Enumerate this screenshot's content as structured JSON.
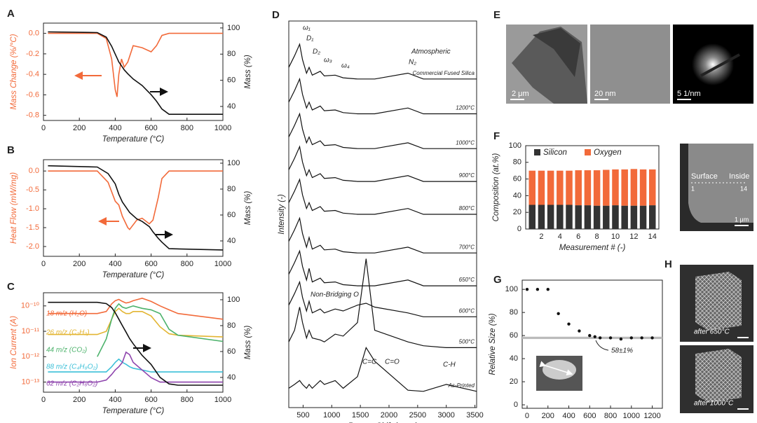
{
  "panel_labels": [
    "A",
    "B",
    "C",
    "D",
    "E",
    "F",
    "G",
    "H"
  ],
  "images": {
    "e_scales": [
      "2 μm",
      "20 nm",
      "5 1/nm"
    ],
    "f_image": {
      "surface": "Surface",
      "inside": "Inside",
      "start": "1",
      "end": "14",
      "scale": "1 μm"
    },
    "h_labels": [
      "after 650°C",
      "after 1000°C"
    ]
  },
  "chart_data": [
    {
      "type": "line",
      "xlabel": "Temperature (°C)",
      "ylabel": "Mass Change (%/°C)",
      "y2label": "Mass (%)",
      "ycolor": "#f26a3a",
      "x": [
        25,
        300,
        350,
        380,
        400,
        410,
        420,
        435,
        450,
        470,
        500,
        550,
        600,
        630,
        660,
        700,
        1000
      ],
      "xlim": [
        0,
        1000
      ],
      "xticks": [
        0,
        200,
        400,
        600,
        800,
        1000
      ],
      "ylim": [
        -0.85,
        0.1
      ],
      "yticks": [
        {
          "value": 0,
          "label": "0.0"
        },
        -0.2,
        -0.4,
        -0.6,
        -0.8
      ],
      "y2lim": [
        29.3,
        103.7
      ],
      "y2ticks": [
        40,
        60,
        80,
        100
      ],
      "series": [
        {
          "color": "#f26a3a",
          "values": [
            0,
            0,
            -0.05,
            -0.25,
            -0.55,
            -0.62,
            -0.4,
            -0.25,
            -0.33,
            -0.28,
            -0.12,
            -0.14,
            -0.18,
            -0.12,
            -0.02,
            0,
            0
          ]
        },
        {
          "color": "#111111",
          "axis": "y2",
          "values": [
            97,
            96.5,
            93,
            86,
            80,
            77,
            74,
            71,
            68,
            65,
            61,
            56,
            49,
            44,
            38,
            34,
            34
          ]
        }
      ]
    },
    {
      "type": "line",
      "xlabel": "Temperature (°C)",
      "ylabel": "Heat Flow (mW/mg)",
      "y2label": "Mass (%)",
      "ycolor": "#f26a3a",
      "x": [
        25,
        300,
        360,
        400,
        420,
        440,
        470,
        480,
        520,
        550,
        590,
        610,
        640,
        660,
        700,
        1000
      ],
      "xlim": [
        0,
        1000
      ],
      "xticks": [
        0,
        200,
        400,
        600,
        800,
        1000
      ],
      "ylim": [
        -2.26,
        0.3
      ],
      "yticks": [
        {
          "value": 0,
          "label": "0.0"
        },
        -0.5,
        {
          "value": -1,
          "label": "-1.0"
        },
        -1.5,
        {
          "value": -2,
          "label": "-2.0"
        }
      ],
      "y2lim": [
        28.1,
        102.7
      ],
      "y2ticks": [
        40,
        60,
        80,
        100
      ],
      "series": [
        {
          "color": "#f26a3a",
          "values": [
            0,
            0,
            -0.3,
            -0.8,
            -0.9,
            -1.2,
            -1.5,
            -1.55,
            -1.3,
            -1.25,
            -1.4,
            -1.3,
            -0.7,
            -0.2,
            0,
            0
          ]
        },
        {
          "color": "#111111",
          "axis": "y2",
          "values": [
            98,
            97,
            92,
            84,
            76,
            70,
            64,
            62,
            57,
            55,
            51,
            47,
            42,
            39,
            34,
            33
          ]
        }
      ]
    },
    {
      "type": "line",
      "xlabel": "Temperature (°C)",
      "ylabel": "Ion Current (A)",
      "y2label": "Mass (%)",
      "ycolor": "#f26a3a",
      "log_y": true,
      "x": [
        25,
        300,
        350,
        380,
        400,
        420,
        440,
        460,
        480,
        500,
        550,
        600,
        650,
        700,
        750,
        1000
      ],
      "xlim": [
        0,
        1000
      ],
      "xticks": [
        0,
        200,
        400,
        600,
        800,
        1000
      ],
      "ylim": [
        4e-14,
        3.3e-10
      ],
      "yticks": [
        {
          "value": 1e-13,
          "label": "10⁻¹³"
        },
        {
          "value": 1e-12,
          "label": "10⁻¹²"
        },
        {
          "value": 1e-11,
          "label": "10⁻¹¹"
        },
        {
          "value": 1e-10,
          "label": "10⁻¹⁰"
        }
      ],
      "y2lim": [
        28.6,
        105.4
      ],
      "y2ticks": [
        40,
        60,
        80,
        100
      ],
      "series": [
        {
          "name": "18 m/z (H₂O)",
          "color": "#f26a3a",
          "values": [
            5e-11,
            5e-11,
            6e-11,
            1.2e-10,
            1.6e-10,
            1.8e-10,
            1.5e-10,
            1.3e-10,
            1.4e-10,
            1.6e-10,
            2e-10,
            1.5e-10,
            1e-10,
            7e-11,
            5e-11,
            3e-11
          ]
        },
        {
          "name": "26 m/z (C₂H₂)",
          "color": "#e3b532",
          "values": [
            7.5e-12,
            7.5e-12,
            1e-11,
            3e-11,
            6e-11,
            8e-11,
            6e-11,
            5e-11,
            5e-11,
            6e-11,
            6e-11,
            4e-11,
            1.5e-11,
            8e-12,
            7e-12,
            6e-12
          ]
        },
        {
          "name": "44 m/z (CO₂)",
          "color": "#4cb26b",
          "values": [
            null,
            1e-12,
            5e-12,
            3e-11,
            8e-11,
            1.2e-10,
            9e-11,
            8e-11,
            9e-11,
            1e-10,
            8e-11,
            7e-11,
            5e-11,
            1.2e-11,
            7e-12,
            4e-12
          ]
        },
        {
          "name": "88 m/z (C₄H₈O₂)",
          "color": "#3cc0d8",
          "values": [
            2.5e-13,
            2.5e-13,
            2.5e-13,
            4e-13,
            6e-13,
            8e-13,
            6e-13,
            5e-13,
            4e-13,
            3.5e-13,
            3e-13,
            2.5e-13,
            2.5e-13,
            2.5e-13,
            2.5e-13,
            2.5e-13
          ]
        },
        {
          "name": "62 m/z (C₂H₆O₂)",
          "color": "#8e44ad",
          "values": [
            1e-13,
            1e-13,
            1.2e-13,
            2e-13,
            3e-13,
            4e-13,
            6e-13,
            1.5e-12,
            1.2e-12,
            6e-13,
            3e-13,
            1.5e-13,
            1e-13,
            1e-13,
            1e-13,
            1e-13
          ]
        },
        {
          "color": "#111111",
          "axis": "y2",
          "values": [
            98,
            98,
            97,
            94,
            90,
            85,
            80,
            75,
            70,
            66,
            57,
            50,
            40,
            35,
            34,
            34
          ]
        }
      ]
    },
    {
      "type": "line",
      "xlabel": "Raman Shift (cm⁻¹)",
      "ylabel": "Intensity (-)",
      "x": [
        250,
        350,
        440,
        490,
        560,
        605,
        660,
        800,
        870,
        1060,
        1200,
        1450,
        1600,
        1750,
        2330,
        2600,
        3000,
        3530
      ],
      "xlim": [
        250,
        3530
      ],
      "xticks": [
        500,
        1000,
        1500,
        2000,
        2500,
        3000,
        3500
      ],
      "ylim": [
        0,
        100
      ],
      "annotations": [
        "ω₁",
        "D₁",
        "D₂",
        "ω₃",
        "ω₄",
        "Atmospheric",
        "N₂",
        "Non-Bridging O",
        "C=C",
        "C=O",
        "C-H"
      ],
      "series": [
        {
          "name": "Commercial Fused Silica",
          "color": "#111111",
          "values": [
            88,
            91,
            94,
            90,
            86.5,
            88,
            86,
            87,
            85.8,
            86,
            85.3,
            85,
            85,
            85,
            86.5,
            85,
            85,
            85
          ]
        },
        {
          "name": "1200°C",
          "color": "#111111",
          "values": [
            79,
            82,
            85,
            81,
            77.5,
            79,
            77,
            78,
            76.8,
            77,
            76.3,
            76,
            76,
            76,
            77.5,
            76,
            76,
            76
          ]
        },
        {
          "name": "1000°C",
          "color": "#111111",
          "values": [
            70,
            73,
            76,
            72,
            68.5,
            70,
            68,
            69,
            67.8,
            68,
            67.3,
            67,
            67,
            67,
            68.5,
            67,
            67,
            67
          ]
        },
        {
          "name": "900°C",
          "color": "#111111",
          "values": [
            61.5,
            64.5,
            67.5,
            63.5,
            60,
            61.5,
            59.5,
            60.5,
            59.3,
            59.5,
            58.8,
            58.5,
            58.5,
            58.5,
            60,
            58.5,
            58.5,
            58.5
          ]
        },
        {
          "name": "800°C",
          "color": "#111111",
          "values": [
            53,
            56,
            59,
            55,
            51.5,
            53,
            51,
            52,
            50.8,
            51,
            50.3,
            50,
            50,
            50,
            51.5,
            50,
            50,
            50
          ]
        },
        {
          "name": "700°C",
          "color": "#111111",
          "values": [
            43,
            46,
            49,
            45,
            41.5,
            44,
            41,
            42,
            40.8,
            41,
            40.3,
            40,
            40,
            40,
            41.5,
            40,
            40,
            40
          ]
        },
        {
          "name": "650°C",
          "color": "#111111",
          "values": [
            34.5,
            37.5,
            40.5,
            36.5,
            33,
            36,
            32.5,
            33.5,
            32.3,
            32.5,
            31.8,
            31.5,
            31.5,
            31.5,
            33,
            31.5,
            31.5,
            31.5
          ]
        },
        {
          "name": "600°C",
          "color": "#111111",
          "values": [
            26.5,
            29.5,
            32.5,
            28.5,
            25,
            27.5,
            24.5,
            25.5,
            24.5,
            25.5,
            25,
            26.5,
            27,
            26,
            24.5,
            23.5,
            23.5,
            23.5
          ]
        },
        {
          "name": "500°C",
          "color": "#111111",
          "values": [
            17,
            20,
            26,
            22,
            18,
            20,
            18,
            17.5,
            17,
            19,
            18.5,
            22,
            38.5,
            20,
            17,
            16,
            15.5,
            15.5
          ]
        },
        {
          "name": "As-Printed",
          "color": "#111111",
          "values": [
            5,
            6,
            7,
            6,
            5,
            6,
            5,
            7,
            6,
            7,
            5,
            8,
            15.5,
            12,
            4.5,
            4.2,
            6,
            4.2
          ]
        }
      ]
    },
    {
      "type": "stacked_bar",
      "xlabel": "Measurement # (-)",
      "ylabel": "Composition (at.%)",
      "legend": "top",
      "x": [
        1,
        2,
        3,
        4,
        5,
        6,
        7,
        8,
        9,
        10,
        11,
        12,
        13,
        14
      ],
      "xlim": [
        0.3,
        14.7
      ],
      "xticks": [
        2,
        4,
        6,
        8,
        10,
        12,
        14
      ],
      "ylim": [
        0,
        100
      ],
      "yticks": [
        0,
        20,
        40,
        60,
        80,
        100
      ],
      "series": [
        {
          "name": "Silicon",
          "color": "#333333",
          "values": [
            29,
            29,
            29,
            29,
            29,
            28.5,
            28.5,
            28,
            28,
            28.5,
            28,
            28,
            28,
            28.5
          ]
        },
        {
          "name": "Oxygen",
          "color": "#f26a3a",
          "values": [
            41,
            41,
            41,
            41,
            41,
            42,
            42,
            42.5,
            43,
            43,
            43.5,
            44,
            43.5,
            43
          ]
        }
      ]
    },
    {
      "type": "scatter",
      "xlabel": "Temperature (°C)",
      "ylabel": "Relative Size (%)",
      "color": "#111111",
      "x": [
        0,
        100,
        200,
        300,
        400,
        500,
        600,
        650,
        700,
        800,
        900,
        1000,
        1100,
        1200
      ],
      "values": [
        100,
        100,
        100,
        79,
        70,
        64,
        60,
        59,
        58,
        58,
        57,
        58,
        58,
        58
      ],
      "xlim": [
        -47,
        1297
      ],
      "xticks": [
        0,
        200,
        400,
        600,
        800,
        1000,
        1200
      ],
      "ylim": [
        -3,
        108
      ],
      "yticks": [
        0,
        20,
        40,
        60,
        80,
        100
      ],
      "band": [
        57,
        59
      ],
      "band_color": "#bbbbbb",
      "annotation": "58±1%"
    }
  ]
}
